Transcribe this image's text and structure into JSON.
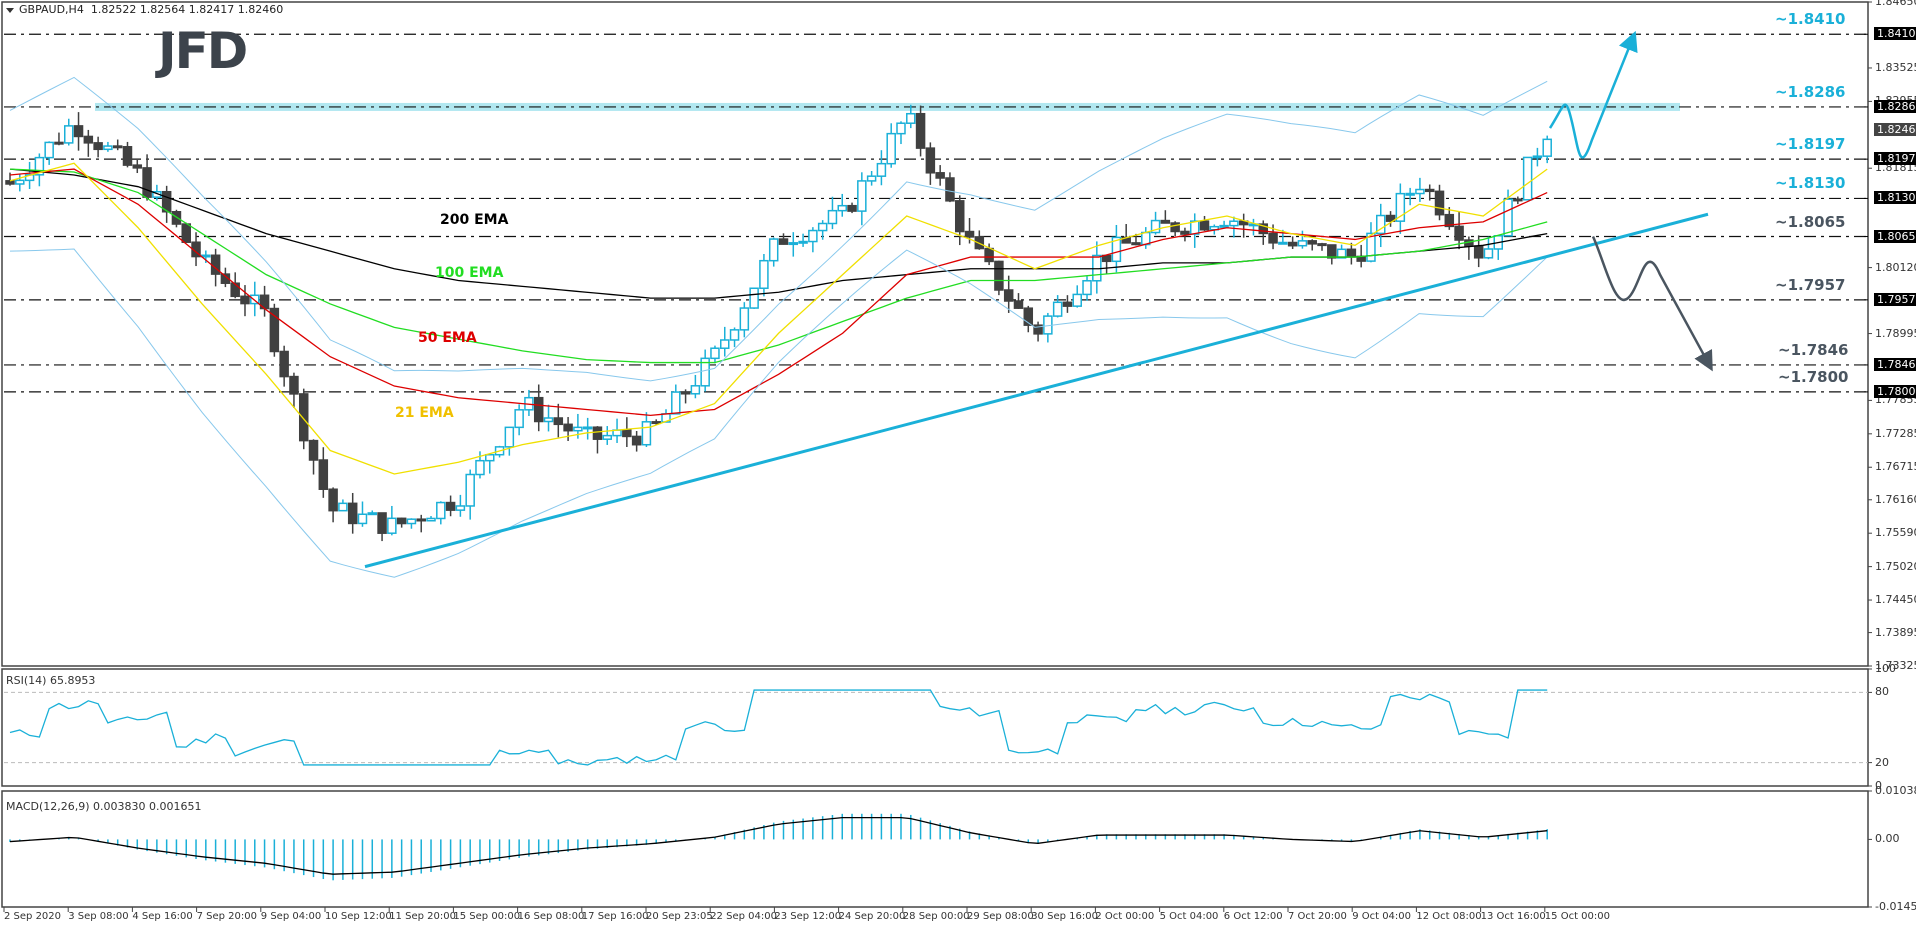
{
  "header": {
    "symbol": "GBPAUD,H4",
    "ohlc": "1.82522 1.82564 1.82417 1.82460",
    "logo": "JFD"
  },
  "price_axis": {
    "ticks": [
      "1.84650",
      "1.83525",
      "1.82955",
      "1.81815",
      "1.80120",
      "1.78995",
      "1.77855",
      "1.77285",
      "1.76715",
      "1.76160",
      "1.75590",
      "1.75020",
      "1.74450",
      "1.73895",
      "1.73325"
    ],
    "tagged": [
      "1.84100",
      "1.82860",
      "1.81970",
      "1.81300",
      "1.80650",
      "1.79570",
      "1.78460",
      "1.78000"
    ],
    "current": "1.82460"
  },
  "levels": [
    {
      "label": "~1.8410",
      "value": 1.841,
      "color": "#1ab0d8"
    },
    {
      "label": "~1.8286",
      "value": 1.8286,
      "color": "#1ab0d8"
    },
    {
      "label": "~1.8197",
      "value": 1.8197,
      "color": "#1ab0d8"
    },
    {
      "label": "~1.8130",
      "value": 1.813,
      "color": "#1ab0d8"
    },
    {
      "label": "~1.8065",
      "value": 1.8065,
      "color": "#4a5560"
    },
    {
      "label": "~1.7957",
      "value": 1.7957,
      "color": "#4a5560"
    },
    {
      "label": "~1.7846",
      "value": 1.7846,
      "color": "#4a5560"
    },
    {
      "label": "~1.7800",
      "value": 1.78,
      "color": "#4a5560"
    }
  ],
  "ema_labels": [
    {
      "label": "200 EMA",
      "color": "#000000"
    },
    {
      "label": "100 EMA",
      "color": "#22dd22"
    },
    {
      "label": "50 EMA",
      "color": "#dd0000"
    },
    {
      "label": "21 EMA",
      "color": "#f0c000"
    }
  ],
  "rsi": {
    "label": "RSI(14) 65.8953",
    "ticks": [
      "100",
      "80",
      "20",
      "0"
    ]
  },
  "macd": {
    "label": "MACD(12,26,9) 0.003830 0.001651",
    "ticks": [
      "0.010387",
      "0.00",
      "-0.014506"
    ]
  },
  "time_axis": [
    "2 Sep 2020",
    "3 Sep 08:00",
    "4 Sep 16:00",
    "7 Sep 20:00",
    "9 Sep 04:00",
    "10 Sep 12:00",
    "11 Sep 20:00",
    "15 Sep 00:00",
    "16 Sep 08:00",
    "17 Sep 16:00",
    "20 Sep 23:05",
    "22 Sep 04:00",
    "23 Sep 12:00",
    "24 Sep 20:00",
    "28 Sep 00:00",
    "29 Sep 08:00",
    "30 Sep 16:00",
    "2 Oct 00:00",
    "5 Oct 04:00",
    "6 Oct 12:00",
    "7 Oct 20:00",
    "9 Oct 04:00",
    "12 Oct 08:00",
    "13 Oct 16:00",
    "15 Oct 00:00"
  ],
  "colors": {
    "bull": "#1ab0d8",
    "bear": "#404040",
    "bands": "#88c8ec",
    "trend": "#1ab0d8",
    "zone": "#a8e4ee"
  },
  "chart_data": {
    "type": "candlestick",
    "title": "GBPAUD,H4",
    "ylim": [
      1.73325,
      1.8465
    ],
    "x": [
      "2 Sep 2020",
      "3 Sep 08:00",
      "4 Sep 16:00",
      "7 Sep 20:00",
      "9 Sep 04:00",
      "10 Sep 12:00",
      "11 Sep 20:00",
      "15 Sep 00:00",
      "16 Sep 08:00",
      "17 Sep 16:00",
      "20 Sep 23:05",
      "22 Sep 04:00",
      "23 Sep 12:00",
      "24 Sep 20:00",
      "28 Sep 00:00",
      "29 Sep 08:00",
      "30 Sep 16:00",
      "2 Oct 00:00",
      "5 Oct 04:00",
      "6 Oct 12:00",
      "7 Oct 20:00",
      "9 Oct 04:00",
      "12 Oct 08:00",
      "13 Oct 16:00",
      "15 Oct 00:00"
    ],
    "close_approx": [
      1.8155,
      1.826,
      1.817,
      1.802,
      1.793,
      1.76,
      1.757,
      1.762,
      1.778,
      1.772,
      1.773,
      1.786,
      1.806,
      1.81,
      1.827,
      1.805,
      1.79,
      1.803,
      1.808,
      1.81,
      1.805,
      1.803,
      1.816,
      1.803,
      1.8246
    ],
    "series": [
      {
        "name": "200 EMA",
        "values": [
          1.818,
          1.817,
          1.815,
          1.811,
          1.807,
          1.804,
          1.801,
          1.799,
          1.798,
          1.797,
          1.796,
          1.796,
          1.797,
          1.799,
          1.8,
          1.801,
          1.801,
          1.801,
          1.802,
          1.802,
          1.803,
          1.803,
          1.804,
          1.805,
          1.807
        ]
      },
      {
        "name": "100 EMA",
        "values": [
          1.818,
          1.8175,
          1.814,
          1.807,
          1.8,
          1.795,
          1.791,
          1.789,
          1.787,
          1.7855,
          1.785,
          1.785,
          1.788,
          1.792,
          1.796,
          1.799,
          1.799,
          1.8,
          1.801,
          1.802,
          1.803,
          1.803,
          1.804,
          1.806,
          1.809
        ]
      },
      {
        "name": "50 EMA",
        "values": [
          1.817,
          1.818,
          1.812,
          1.803,
          1.794,
          1.786,
          1.781,
          1.779,
          1.778,
          1.777,
          1.776,
          1.777,
          1.783,
          1.79,
          1.8,
          1.803,
          1.803,
          1.803,
          1.806,
          1.808,
          1.807,
          1.806,
          1.808,
          1.809,
          1.814
        ]
      },
      {
        "name": "21 EMA",
        "values": [
          1.816,
          1.819,
          1.808,
          1.795,
          1.783,
          1.77,
          1.766,
          1.768,
          1.771,
          1.773,
          1.774,
          1.778,
          1.79,
          1.8,
          1.81,
          1.806,
          1.801,
          1.805,
          1.808,
          1.81,
          1.807,
          1.805,
          1.812,
          1.81,
          1.818
        ]
      }
    ],
    "annotations": [
      "Support/resistance levels: 1.8410, 1.8286, 1.8197, 1.8130, 1.8065, 1.7957, 1.7846, 1.7800",
      "Rising trendline from 10 Sep low",
      "Bullish scenario arrow to ~1.8410",
      "Bearish scenario arrow to ~1.7846"
    ],
    "subplots": [
      {
        "name": "RSI(14)",
        "value": 65.8953,
        "ylim": [
          0,
          100
        ],
        "levels": [
          20,
          80
        ]
      },
      {
        "name": "MACD(12,26,9)",
        "main": 0.00383,
        "signal": 0.001651,
        "ylim": [
          -0.014506,
          0.010387
        ]
      }
    ]
  }
}
